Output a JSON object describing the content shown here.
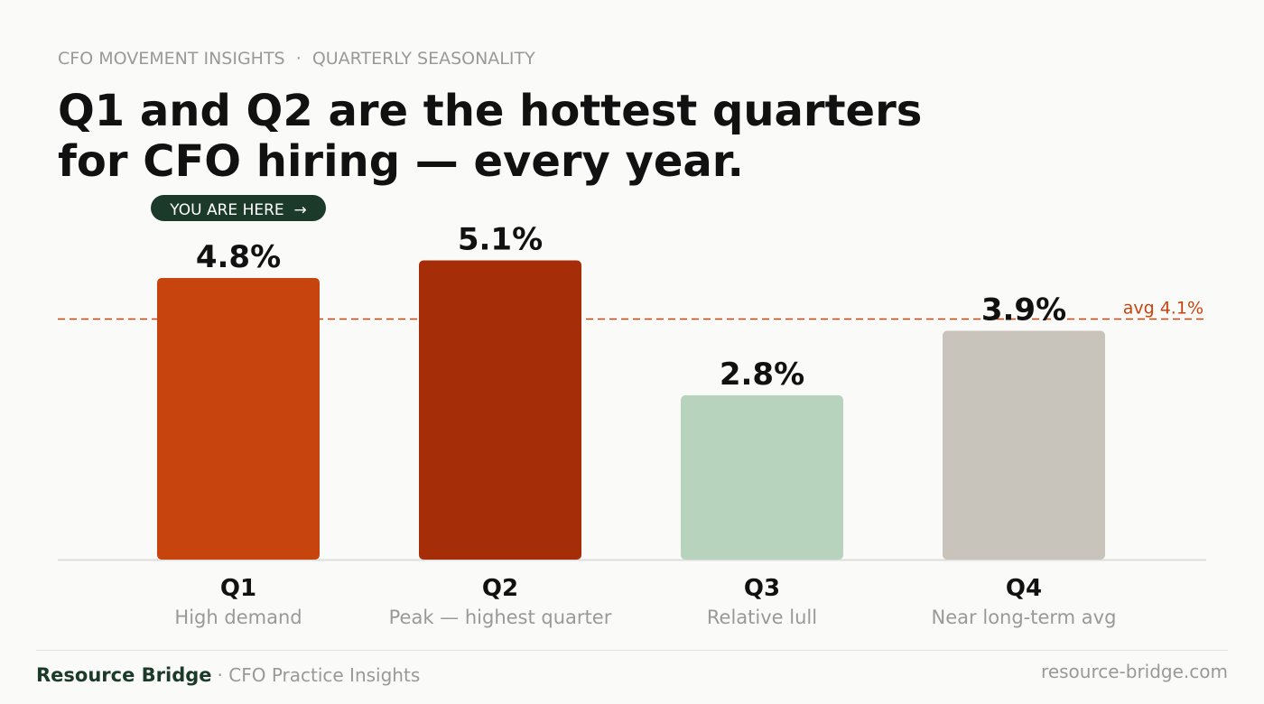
{
  "chart_data": {
    "type": "bar",
    "eyebrow": "CFO MOVEMENT INSIGHTS  ·  QUARTERLY SEASONALITY",
    "title_lines": [
      "Q1 and Q2 are the hottest quarters",
      "for CFO hiring — every year."
    ],
    "badge": "YOU ARE HERE  →",
    "categories": [
      "Q1",
      "Q2",
      "Q3",
      "Q4"
    ],
    "category_notes": [
      "High demand",
      "Peak — highest quarter",
      "Relative lull",
      "Near long-term avg"
    ],
    "values": [
      4.8,
      5.1,
      2.8,
      3.9
    ],
    "value_labels": [
      "4.8%",
      "5.1%",
      "2.8%",
      "3.9%"
    ],
    "colors": [
      "#c8440e",
      "#a52d08",
      "#b7d3bd",
      "#c8c3bb"
    ],
    "average": {
      "value": 4.1,
      "label": "avg 4.1%"
    },
    "average_color": "#c8440e",
    "ylim": [
      0,
      6
    ]
  },
  "footer": {
    "brand": "Resource Bridge",
    "tagline": "· CFO Practice Insights",
    "url": "resource-bridge.com"
  }
}
